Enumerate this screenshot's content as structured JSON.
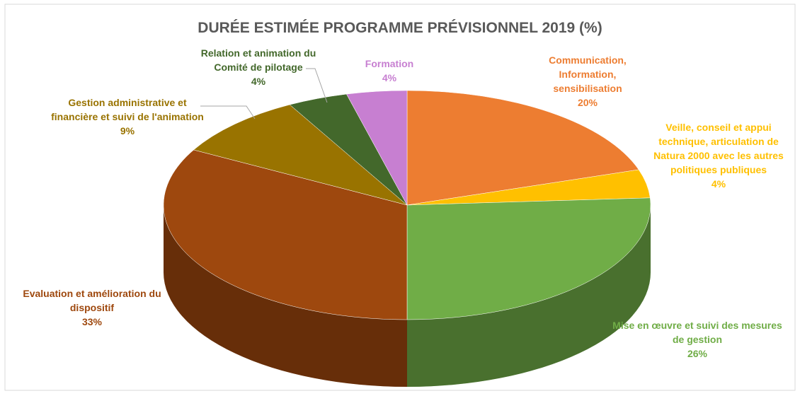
{
  "chart_data": {
    "type": "pie",
    "title": "DURÉE ESTIMÉE PROGRAMME PRÉVISIONNEL 2019 (%)",
    "categories": [
      "Communication, Information, sensibilisation",
      "Veille, conseil et appui technique, articulation de Natura 2000 avec les autres politiques publiques",
      "Mise en œuvre et suivi des mesures de gestion",
      "Evaluation et amélioration du dispositif",
      "Gestion administrative et financière et suivi de l'animation",
      "Relation et animation du Comité de pilotage",
      "Formation"
    ],
    "values": [
      20,
      4,
      26,
      33,
      9,
      4,
      4
    ],
    "value_labels": [
      "20%",
      "4%",
      "26%",
      "33%",
      "9%",
      "4%",
      "4%"
    ],
    "colors": [
      "#ED7D31",
      "#FFC000",
      "#70AD47",
      "#9E480E",
      "#997300",
      "#43682B",
      "#C77FD1"
    ]
  }
}
